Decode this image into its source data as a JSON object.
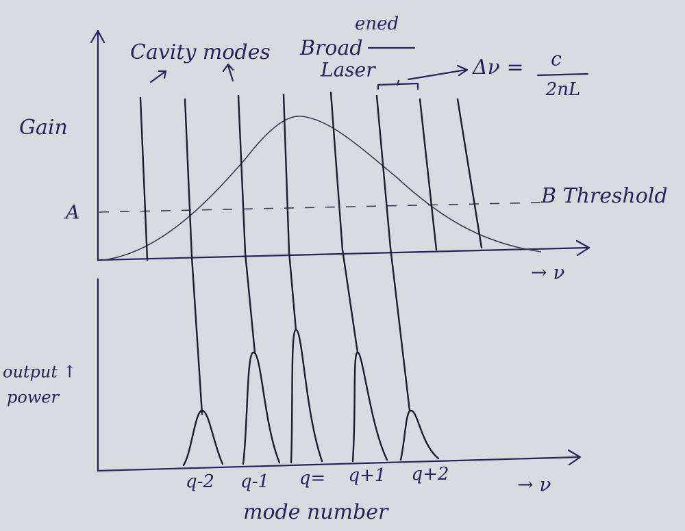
{
  "labels": {
    "cavity_modes": "Cavity modes",
    "broad": "Broad",
    "ened": "ened",
    "laser": "Laser",
    "formula_lhs": "Δν =",
    "formula_num": "c",
    "formula_den": "2nL",
    "gain": "Gain",
    "point_a": "A",
    "threshold": "B Threshold",
    "top_axis": "→ ν",
    "output": "output ↑",
    "power": "power",
    "bottom_axis": "→ ν",
    "x_label": "mode number"
  },
  "modes": [
    "q-2",
    "q-1",
    "q=",
    "q+1",
    "q+2"
  ]
}
